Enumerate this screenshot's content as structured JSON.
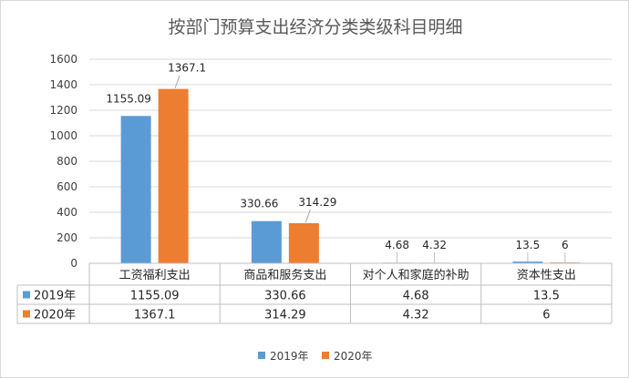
{
  "chart_data": {
    "type": "bar",
    "title": "按部门预算支出经济分类类级科目明细",
    "categories": [
      "工资福利支出",
      "商品和服务支出",
      "对个人和家庭的补助",
      "资本性支出"
    ],
    "series": [
      {
        "name": "2019年",
        "values": [
          1155.09,
          330.66,
          4.68,
          13.5
        ],
        "labels": [
          "1155.09",
          "330.66",
          "4.68",
          "13.5"
        ],
        "color": "#5b9bd5"
      },
      {
        "name": "2020年",
        "values": [
          1367.1,
          314.29,
          4.32,
          6
        ],
        "labels": [
          "1367.1",
          "314.29",
          "4.32",
          "6"
        ],
        "color": "#ed7d31"
      }
    ],
    "ylim": [
      0,
      1600
    ],
    "yticks": [
      "0",
      "200",
      "400",
      "600",
      "800",
      "1000",
      "1200",
      "1400",
      "1600"
    ],
    "grid": true,
    "legend": "bottom",
    "data_table": true,
    "xlabel": "",
    "ylabel": ""
  }
}
